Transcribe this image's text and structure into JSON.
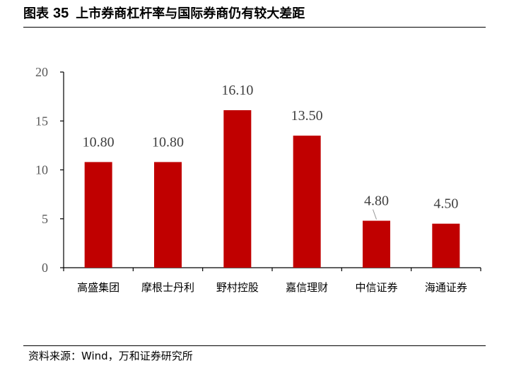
{
  "header": {
    "label": "图表",
    "number": "35",
    "title": "上市券商杠杆率与国际券商仍有较大差距"
  },
  "source": "资料来源：Wind，万和证券研究所",
  "colors": {
    "bar": "#C00000",
    "axis": "#000000",
    "tick_text": "#595959",
    "label_text": "#404040"
  },
  "chart_data": {
    "type": "bar",
    "title": "",
    "xlabel": "",
    "ylabel": "",
    "categories": [
      "高盛集团",
      "摩根士丹利",
      "野村控股",
      "嘉信理财",
      "中信证券",
      "海通证券"
    ],
    "values": [
      10.8,
      10.8,
      16.1,
      13.5,
      4.8,
      4.5
    ],
    "value_labels": [
      "10.80",
      "10.80",
      "16.10",
      "13.50",
      "4.80",
      "4.50"
    ],
    "ylim": [
      0,
      20
    ],
    "yticks": [
      0,
      5,
      10,
      15,
      20
    ],
    "grid": false,
    "legend": "none"
  }
}
